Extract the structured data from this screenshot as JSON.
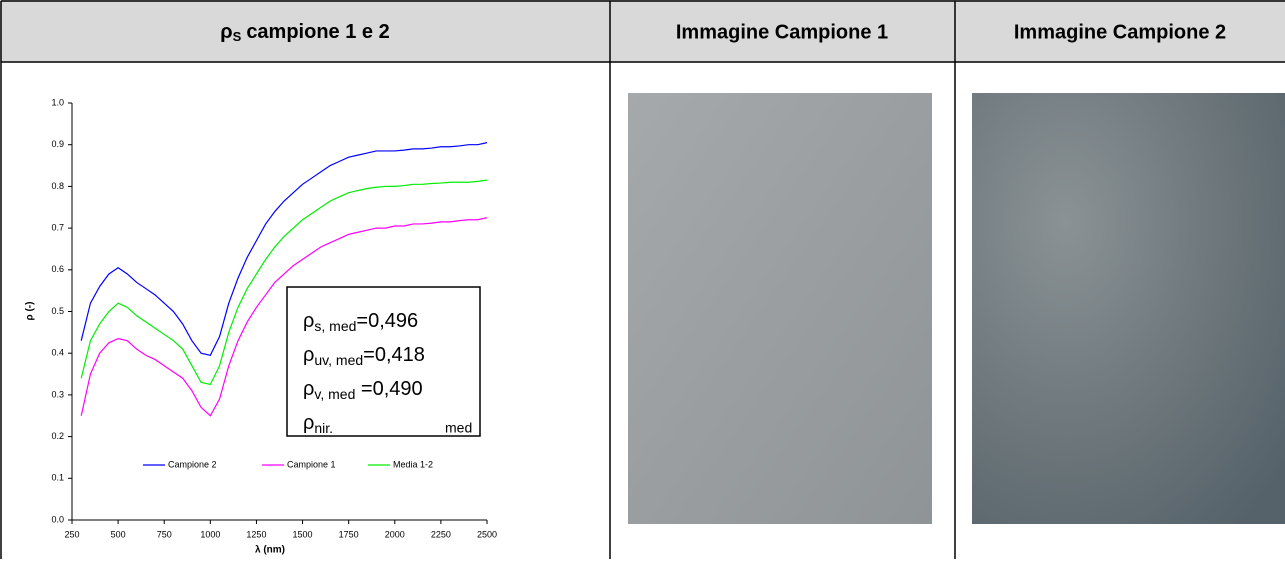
{
  "header": {
    "cells": [
      {
        "symbol": "ρ",
        "subscript": "S",
        "text": "campione 1 e 2"
      },
      "Immagine Campione 1",
      "Immagine Campione 2"
    ]
  },
  "chart_data": {
    "type": "line",
    "x_label": "λ (nm)",
    "y_label": "ρ (-)",
    "x": [
      300,
      350,
      400,
      450,
      500,
      550,
      600,
      650,
      700,
      750,
      800,
      850,
      900,
      950,
      1000,
      1050,
      1100,
      1150,
      1200,
      1250,
      1300,
      1350,
      1400,
      1450,
      1500,
      1550,
      1600,
      1650,
      1700,
      1750,
      1800,
      1850,
      1900,
      1950,
      2000,
      2050,
      2100,
      2150,
      2200,
      2250,
      2300,
      2350,
      2400,
      2450,
      2500
    ],
    "series": [
      {
        "name": "Campione 2",
        "color": "#0000ff",
        "values": [
          0.43,
          0.52,
          0.56,
          0.59,
          0.605,
          0.59,
          0.57,
          0.555,
          0.54,
          0.52,
          0.5,
          0.47,
          0.43,
          0.4,
          0.395,
          0.44,
          0.52,
          0.58,
          0.63,
          0.67,
          0.71,
          0.74,
          0.765,
          0.785,
          0.805,
          0.82,
          0.835,
          0.85,
          0.86,
          0.87,
          0.875,
          0.88,
          0.885,
          0.885,
          0.885,
          0.887,
          0.89,
          0.89,
          0.892,
          0.895,
          0.895,
          0.897,
          0.9,
          0.9,
          0.905
        ]
      },
      {
        "name": "Campione 1",
        "color": "#ff00ff",
        "values": [
          0.25,
          0.35,
          0.4,
          0.425,
          0.435,
          0.43,
          0.41,
          0.395,
          0.385,
          0.37,
          0.355,
          0.34,
          0.31,
          0.27,
          0.25,
          0.29,
          0.37,
          0.43,
          0.475,
          0.51,
          0.54,
          0.57,
          0.59,
          0.61,
          0.625,
          0.64,
          0.655,
          0.665,
          0.675,
          0.685,
          0.69,
          0.695,
          0.7,
          0.7,
          0.705,
          0.705,
          0.71,
          0.71,
          0.712,
          0.715,
          0.715,
          0.718,
          0.72,
          0.72,
          0.725
        ]
      },
      {
        "name": "Media 1-2",
        "color": "#00ee00",
        "values": [
          0.34,
          0.43,
          0.47,
          0.5,
          0.52,
          0.51,
          0.49,
          0.475,
          0.46,
          0.445,
          0.43,
          0.41,
          0.37,
          0.33,
          0.325,
          0.37,
          0.45,
          0.51,
          0.555,
          0.59,
          0.625,
          0.655,
          0.68,
          0.7,
          0.72,
          0.735,
          0.75,
          0.765,
          0.775,
          0.785,
          0.79,
          0.795,
          0.798,
          0.8,
          0.8,
          0.802,
          0.805,
          0.805,
          0.807,
          0.808,
          0.81,
          0.81,
          0.81,
          0.812,
          0.815
        ]
      }
    ],
    "xlim": [
      250,
      2500
    ],
    "xticks": [
      250,
      500,
      750,
      1000,
      1250,
      1500,
      1750,
      2000,
      2250,
      2500
    ],
    "ylim": [
      0,
      1
    ],
    "yticks": [
      {
        "value": 0,
        "label": "0.0"
      },
      0.1,
      0.2,
      0.3,
      0.4,
      0.5,
      0.6,
      0.7,
      0.8,
      0.9,
      {
        "value": 1,
        "label": "1.0"
      }
    ],
    "annotations": [
      {
        "symbol": "ρ",
        "subscript": "s, med",
        "text": "=0,496"
      },
      {
        "symbol": "ρ",
        "subscript": "uv, med",
        "text": "=0,418"
      },
      {
        "symbol": "ρ",
        "subscript": "v, med",
        "text": " =0,490"
      },
      {
        "symbol": "ρ",
        "subscript": "nir.",
        "tail": "med"
      }
    ]
  }
}
